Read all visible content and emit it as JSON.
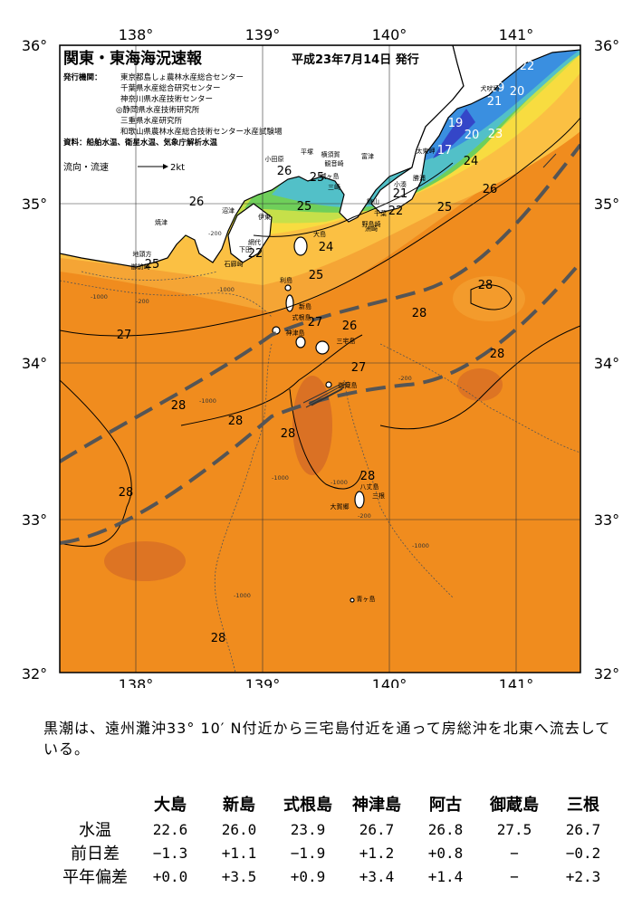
{
  "header": {
    "title": "関東・東海海況速報",
    "issue_date": "平成23年7月14日 発行"
  },
  "issuers": {
    "label": "発行機関：",
    "lines": [
      "東京都島しょ農林水産総合センター",
      "千葉県水産総合研究センター",
      "神奈川県水産技術センター",
      "◎静岡県水産技術研究所",
      "三重県水産研究所",
      "和歌山県農林水産総合技術センター水産試験場"
    ],
    "sources": "資料：船舶水温、衛星水温、気象庁解析水温"
  },
  "legend": {
    "flow_label": "流向・流速",
    "speed_label": "2kt"
  },
  "axes": {
    "lon_ticks": [
      "138°",
      "139°",
      "140°",
      "141°"
    ],
    "lat_ticks": [
      "36°",
      "35°",
      "34°",
      "33°",
      "32°"
    ]
  },
  "isotherm_labels": [
    "22",
    "20",
    "19",
    "21",
    "23",
    "19",
    "20",
    "17",
    "24",
    "26",
    "25",
    "26",
    "25",
    "25",
    "24",
    "22",
    "21",
    "22",
    "25",
    "26",
    "25",
    "28",
    "27",
    "28",
    "27",
    "26",
    "27",
    "28",
    "28",
    "28",
    "28",
    "28",
    "28",
    "28"
  ],
  "place_names": [
    "犬吠埼",
    "太東岬",
    "小湊",
    "勝浦",
    "洲崎",
    "富津",
    "千葉",
    "横須賀",
    "観音崎",
    "平塚",
    "小田原",
    "城ヶ島",
    "三崎",
    "野島崎",
    "館山",
    "沼津",
    "焼津",
    "伊東",
    "網代",
    "下田",
    "石廊崎",
    "御前崎",
    "地頭方",
    "大島",
    "利島",
    "新島",
    "式根島",
    "神津島",
    "三宅島",
    "御蔵島",
    "八丈島",
    "大賀郷",
    "三根",
    "青ヶ島"
  ],
  "depth_labels": [
    "-1000",
    "-200",
    "-1000",
    "-200",
    "-1000",
    "-1000",
    "-1000",
    "-200",
    "-1000",
    "-200",
    "-1000"
  ],
  "comment": "黒潮は、遠州灘沖33° 10′ N付近から三宅島付近を通って房総沖を北東へ流去している。",
  "table": {
    "headers": [
      "大島",
      "新島",
      "式根島",
      "神津島",
      "阿古",
      "御蔵島",
      "三根"
    ],
    "rows": [
      {
        "label": "水温",
        "values": [
          "22.6",
          "26.0",
          "23.9",
          "26.7",
          "26.8",
          "27.5",
          "26.7"
        ]
      },
      {
        "label": "前日差",
        "values": [
          "−1.3",
          "+1.1",
          "−1.9",
          "+1.2",
          "+0.8",
          "−",
          "−0.2"
        ]
      },
      {
        "label": "平年偏差",
        "values": [
          "+0.0",
          "+3.5",
          "+0.9",
          "+3.4",
          "+1.4",
          "−",
          "+2.3"
        ]
      }
    ]
  },
  "colors": {
    "land": "#ffffff",
    "warm_28": "#f08c1e",
    "warm_27": "#f5a535",
    "warm_26": "#fbc043",
    "mid_25": "#f8dc40",
    "mid_24": "#c6e04a",
    "cool_23": "#6fcf5a",
    "cool_22": "#52c0c8",
    "cold_21": "#3a8fe0",
    "cold_19": "#3446c8",
    "hot_29": "#d46a25",
    "kuroshio_axis": "#555555"
  }
}
